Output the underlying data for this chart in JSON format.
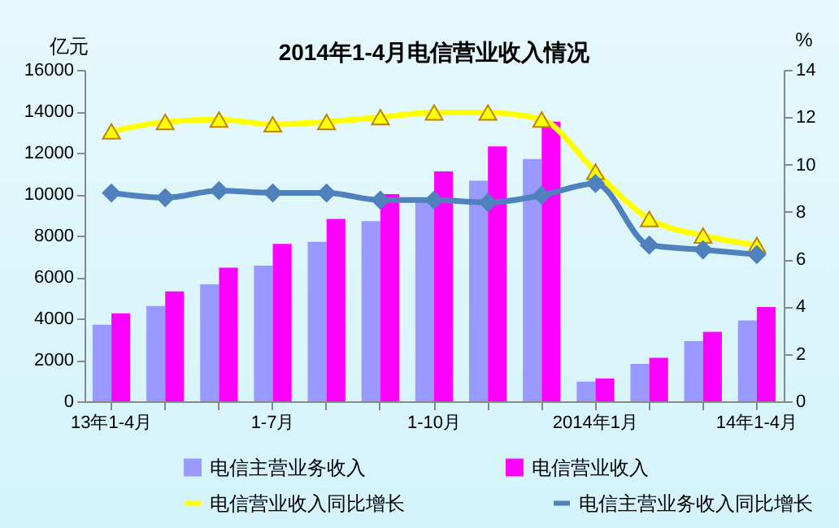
{
  "chart_data": {
    "type": "bar",
    "title": "2014年1-4月电信营业收入情况",
    "ylabel": "亿元",
    "y2label": "%",
    "categories": [
      "13年1-4月",
      null,
      null,
      "1-7月",
      null,
      null,
      "1-10月",
      null,
      null,
      "2014年1月",
      null,
      null,
      "14年1-4月"
    ],
    "ylim": [
      0,
      16000
    ],
    "yticks": [
      0,
      2000,
      4000,
      6000,
      8000,
      10000,
      12000,
      14000,
      16000
    ],
    "y2lim": [
      0,
      14
    ],
    "y2ticks": [
      0,
      2,
      4,
      6,
      8,
      10,
      12,
      14
    ],
    "legend": "bottom",
    "grid": false,
    "series": [
      {
        "name": "电信主营业务收入",
        "color": "#9999ff",
        "values": [
          3700,
          4600,
          5650,
          6550,
          7700,
          8700,
          9800,
          10650,
          11700,
          950,
          1800,
          2900,
          3900
        ]
      },
      {
        "name": "电信营业收入",
        "color": "#ff00ff",
        "values": [
          4250,
          5300,
          6450,
          7600,
          8800,
          10000,
          11100,
          12300,
          13500,
          1100,
          2100,
          3350,
          4550
        ]
      },
      {
        "name": "电信营业收入同比增长",
        "type": "line",
        "axis": "y2",
        "color": "#ffff00",
        "marker": "triangle",
        "values": [
          11.4,
          11.8,
          11.9,
          11.7,
          11.8,
          12.0,
          12.2,
          12.2,
          11.9,
          9.7,
          7.7,
          7.0,
          6.6
        ]
      },
      {
        "name": "电信主营业务收入同比增长",
        "type": "line",
        "axis": "y2",
        "color": "#4f81bd",
        "marker": "diamond",
        "values": [
          8.8,
          8.6,
          8.9,
          8.8,
          8.8,
          8.5,
          8.5,
          8.4,
          8.7,
          9.2,
          6.6,
          6.4,
          6.2
        ]
      }
    ]
  }
}
